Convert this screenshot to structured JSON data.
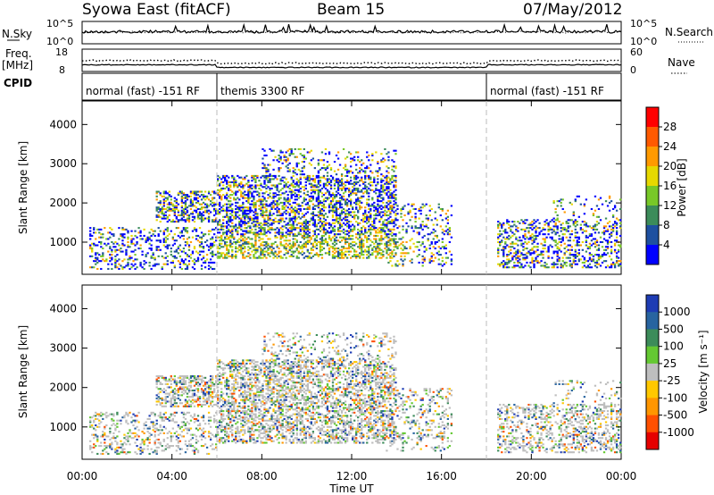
{
  "header": {
    "station": "Syowa East (fitACF)",
    "beam": "Beam 15",
    "date": "07/May/2012"
  },
  "top_panels": {
    "nsky_label": "N.Sky",
    "nsky_ticks": [
      "10^5",
      "10^0"
    ],
    "nsearch_label": "N.Search",
    "nsearch_ticks": [
      "10^5",
      "10^0"
    ],
    "freq_label": "Freq.",
    "freq_unit": "[MHz]",
    "freq_ticks": [
      "18",
      "8"
    ],
    "nave_label": "Nave",
    "nave_ticks": [
      "60",
      "0"
    ],
    "cpid_label": "CPID",
    "cpid_segments": [
      {
        "name": "normal (fast) -151 RF",
        "start_hour": 0,
        "end_hour": 6
      },
      {
        "name": "themis 3300 RF",
        "start_hour": 6,
        "end_hour": 18
      },
      {
        "name": "normal (fast) -151 RF",
        "start_hour": 18,
        "end_hour": 24
      }
    ]
  },
  "chart_data": [
    {
      "type": "heatmap",
      "name": "power",
      "ylabel": "Slant Range [km]",
      "xlabel": "Time UT",
      "xlim": [
        0,
        24
      ],
      "ylim": [
        180,
        4600
      ],
      "yticks": [
        1000,
        2000,
        3000,
        4000
      ],
      "xtick_labels": [
        "00:00",
        "04:00",
        "08:00",
        "12:00",
        "16:00",
        "20:00",
        "00:00"
      ],
      "colorbar_label": "Power [dB]",
      "colorbar_ticks": [
        "28",
        "24",
        "20",
        "16",
        "12",
        "8",
        "4"
      ],
      "colorbar_colors": [
        "#ff0000",
        "#ff5a00",
        "#ff9a00",
        "#e6d800",
        "#78c828",
        "#3c8c5a",
        "#1e50a0",
        "#0000ff"
      ]
    },
    {
      "type": "heatmap",
      "name": "velocity",
      "ylabel": "Slant Range [km]",
      "xlabel": "Time UT",
      "xlim": [
        0,
        24
      ],
      "ylim": [
        180,
        4600
      ],
      "yticks": [
        1000,
        2000,
        3000,
        4000
      ],
      "xtick_labels": [
        "00:00",
        "04:00",
        "08:00",
        "12:00",
        "16:00",
        "20:00",
        "00:00"
      ],
      "colorbar_label": "Velocity [m s⁻¹]",
      "colorbar_ticks": [
        "1000",
        "500",
        "100",
        "25",
        "-25",
        "-100",
        "-500",
        "-1000"
      ],
      "colorbar_colors": [
        "#1e3cb4",
        "#2864a0",
        "#3c8c5a",
        "#64c832",
        "#bebebe",
        "#ffc800",
        "#ff9600",
        "#ff5000",
        "#e60000"
      ]
    }
  ]
}
